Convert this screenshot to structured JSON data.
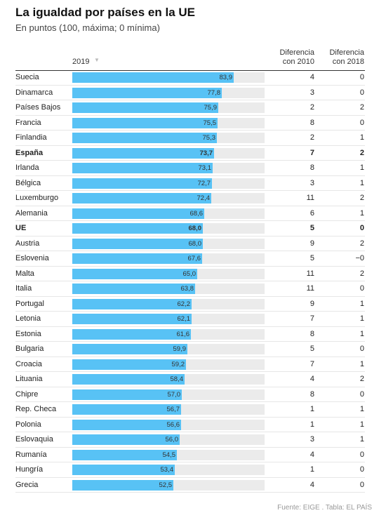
{
  "title": "La igualdad por países en la UE",
  "subtitle": "En puntos (100, máxima; 0 mínima)",
  "header": {
    "col_2019": "2019",
    "sort_icon": "▼",
    "col_d2010_line1": "Diferencia",
    "col_d2010_line2": "con 2010",
    "col_d2018_line1": "Diferencia",
    "col_d2018_line2": "con 2018"
  },
  "source": "Fuente: EIGE . Tabla: EL PAÍS",
  "colors": {
    "bar": "#58c2f5",
    "track": "#ebebeb"
  },
  "chart_data": {
    "type": "table",
    "scale_max": 100,
    "rows": [
      {
        "country": "Suecia",
        "value": 83.9,
        "value_label": "83,9",
        "d2010": "4",
        "d2018": "0",
        "bold": false
      },
      {
        "country": "Dinamarca",
        "value": 77.8,
        "value_label": "77,8",
        "d2010": "3",
        "d2018": "0",
        "bold": false
      },
      {
        "country": "Países Bajos",
        "value": 75.9,
        "value_label": "75,9",
        "d2010": "2",
        "d2018": "2",
        "bold": false
      },
      {
        "country": "Francia",
        "value": 75.5,
        "value_label": "75,5",
        "d2010": "8",
        "d2018": "0",
        "bold": false
      },
      {
        "country": "Finlandia",
        "value": 75.3,
        "value_label": "75,3",
        "d2010": "2",
        "d2018": "1",
        "bold": false
      },
      {
        "country": "España",
        "value": 73.7,
        "value_label": "73,7",
        "d2010": "7",
        "d2018": "2",
        "bold": true
      },
      {
        "country": "Irlanda",
        "value": 73.1,
        "value_label": "73,1",
        "d2010": "8",
        "d2018": "1",
        "bold": false
      },
      {
        "country": "Bélgica",
        "value": 72.7,
        "value_label": "72,7",
        "d2010": "3",
        "d2018": "1",
        "bold": false
      },
      {
        "country": "Luxemburgo",
        "value": 72.4,
        "value_label": "72,4",
        "d2010": "11",
        "d2018": "2",
        "bold": false
      },
      {
        "country": "Alemania",
        "value": 68.6,
        "value_label": "68,6",
        "d2010": "6",
        "d2018": "1",
        "bold": false
      },
      {
        "country": "UE",
        "value": 68.0,
        "value_label": "68,0",
        "d2010": "5",
        "d2018": "0",
        "bold": true
      },
      {
        "country": "Austria",
        "value": 68.0,
        "value_label": "68,0",
        "d2010": "9",
        "d2018": "2",
        "bold": false
      },
      {
        "country": "Eslovenia",
        "value": 67.6,
        "value_label": "67,6",
        "d2010": "5",
        "d2018": "−0",
        "bold": false
      },
      {
        "country": "Malta",
        "value": 65.0,
        "value_label": "65,0",
        "d2010": "11",
        "d2018": "2",
        "bold": false
      },
      {
        "country": "Italia",
        "value": 63.8,
        "value_label": "63,8",
        "d2010": "11",
        "d2018": "0",
        "bold": false
      },
      {
        "country": "Portugal",
        "value": 62.2,
        "value_label": "62,2",
        "d2010": "9",
        "d2018": "1",
        "bold": false
      },
      {
        "country": "Letonia",
        "value": 62.1,
        "value_label": "62,1",
        "d2010": "7",
        "d2018": "1",
        "bold": false
      },
      {
        "country": "Estonia",
        "value": 61.6,
        "value_label": "61,6",
        "d2010": "8",
        "d2018": "1",
        "bold": false
      },
      {
        "country": "Bulgaria",
        "value": 59.9,
        "value_label": "59,9",
        "d2010": "5",
        "d2018": "0",
        "bold": false
      },
      {
        "country": "Croacia",
        "value": 59.2,
        "value_label": "59,2",
        "d2010": "7",
        "d2018": "1",
        "bold": false
      },
      {
        "country": "Lituania",
        "value": 58.4,
        "value_label": "58,4",
        "d2010": "4",
        "d2018": "2",
        "bold": false
      },
      {
        "country": "Chipre",
        "value": 57.0,
        "value_label": "57,0",
        "d2010": "8",
        "d2018": "0",
        "bold": false
      },
      {
        "country": "Rep. Checa",
        "value": 56.7,
        "value_label": "56,7",
        "d2010": "1",
        "d2018": "1",
        "bold": false
      },
      {
        "country": "Polonia",
        "value": 56.6,
        "value_label": "56,6",
        "d2010": "1",
        "d2018": "1",
        "bold": false
      },
      {
        "country": "Eslovaquia",
        "value": 56.0,
        "value_label": "56,0",
        "d2010": "3",
        "d2018": "1",
        "bold": false
      },
      {
        "country": "Rumanía",
        "value": 54.5,
        "value_label": "54,5",
        "d2010": "4",
        "d2018": "0",
        "bold": false
      },
      {
        "country": "Hungría",
        "value": 53.4,
        "value_label": "53,4",
        "d2010": "1",
        "d2018": "0",
        "bold": false
      },
      {
        "country": "Grecia",
        "value": 52.5,
        "value_label": "52,5",
        "d2010": "4",
        "d2018": "0",
        "bold": false
      }
    ]
  }
}
